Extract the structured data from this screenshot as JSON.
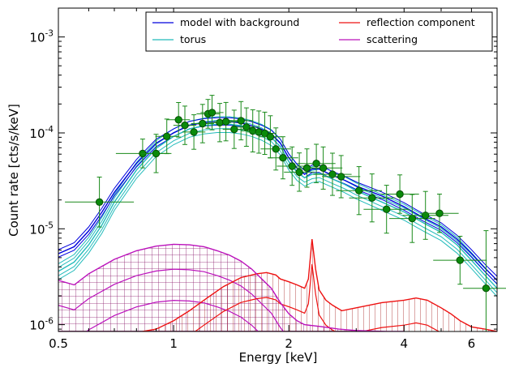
{
  "chart_data": {
    "type": "line",
    "title": "",
    "xlabel": "Energy [keV]",
    "ylabel": "Count rate [cts/s/keV]",
    "xscale": "log",
    "yscale": "log",
    "xlim": [
      0.5,
      7.0
    ],
    "ylim": [
      8.5e-07,
      0.002
    ],
    "grid": false,
    "legend_position": "top-right",
    "x_ticks": [
      {
        "value": 0.5,
        "label": "0.5"
      },
      {
        "value": 1,
        "label": "1"
      },
      {
        "value": 2,
        "label": "2"
      },
      {
        "value": 4,
        "label": "4"
      },
      {
        "value": 6,
        "label": "6"
      }
    ],
    "y_ticks": [
      {
        "value": 1e-06,
        "label": "10",
        "exp": "-6"
      },
      {
        "value": 1e-05,
        "label": "10",
        "exp": "-5"
      },
      {
        "value": 0.0001,
        "label": "10",
        "exp": "-4"
      },
      {
        "value": 0.001,
        "label": "10",
        "exp": "-3"
      }
    ],
    "series": [
      {
        "name": "model with background",
        "color": "#0000dd",
        "x": [
          0.5,
          0.55,
          0.6,
          0.65,
          0.7,
          0.8,
          0.9,
          1.0,
          1.1,
          1.2,
          1.3,
          1.4,
          1.5,
          1.6,
          1.7,
          1.8,
          1.9,
          2.0,
          2.1,
          2.2,
          2.3,
          2.4,
          2.6,
          2.8,
          3.0,
          3.5,
          4.0,
          4.5,
          5.0,
          5.5,
          6.0,
          6.5,
          7.0
        ],
        "values": [
          5.5e-06,
          6.5e-06,
          9.5e-06,
          1.5e-05,
          2.4e-05,
          4.8e-05,
          7.8e-05,
          0.0001,
          0.00012,
          0.000128,
          0.000131,
          0.000131,
          0.000127,
          0.000119,
          0.000109,
          9.7e-05,
          7.8e-05,
          5.5e-05,
          4.3e-05,
          3.7e-05,
          4.2e-05,
          4.2e-05,
          3.6e-05,
          3.2e-05,
          2.8e-05,
          2.2e-05,
          1.7e-05,
          1.3e-05,
          1.05e-05,
          7.8e-06,
          5.5e-06,
          3.9e-06,
          2.9e-06
        ]
      },
      {
        "name": "torus",
        "color": "#22bbbb",
        "x": [
          0.5,
          0.55,
          0.6,
          0.65,
          0.7,
          0.8,
          0.9,
          1.0,
          1.1,
          1.2,
          1.3,
          1.4,
          1.5,
          1.6,
          1.7,
          1.8,
          1.9,
          2.0,
          2.1,
          2.2,
          2.3,
          2.4,
          2.6,
          2.8,
          3.0,
          3.5,
          4.0,
          4.5,
          5.0,
          5.5,
          6.0,
          6.5,
          7.0
        ],
        "values": [
          3.6e-06,
          4.5e-06,
          6.8e-06,
          1.1e-05,
          1.9e-05,
          4.1e-05,
          6.9e-05,
          9.2e-05,
          0.00011,
          0.000119,
          0.000123,
          0.000123,
          0.000119,
          0.000112,
          0.000102,
          9e-05,
          7.2e-05,
          5e-05,
          3.9e-05,
          3.4e-05,
          3.7e-05,
          3.8e-05,
          3.3e-05,
          2.9e-05,
          2.5e-05,
          1.9e-05,
          1.5e-05,
          1.15e-05,
          9.2e-06,
          6.8e-06,
          4.7e-06,
          3.3e-06,
          2.4e-06
        ]
      },
      {
        "name": "reflection component",
        "color": "#ee1111",
        "x": [
          0.83,
          0.9,
          1.0,
          1.1,
          1.2,
          1.35,
          1.5,
          1.65,
          1.75,
          1.8,
          1.85,
          1.9,
          2.0,
          2.1,
          2.2,
          2.25,
          2.3,
          2.35,
          2.4,
          2.5,
          2.6,
          2.75,
          3.0,
          3.5,
          4.0,
          4.3,
          4.6,
          5.0,
          5.3,
          5.6,
          6.0,
          6.5,
          7.0
        ],
        "values": [
          8.5e-07,
          9e-07,
          1.1e-06,
          1.4e-06,
          1.8e-06,
          2.5e-06,
          3.1e-06,
          3.4e-06,
          3.5e-06,
          3.4e-06,
          3.3e-06,
          3e-06,
          2.8e-06,
          2.6e-06,
          2.4e-06,
          3e-06,
          7.8e-06,
          3.8e-06,
          2.3e-06,
          1.8e-06,
          1.6e-06,
          1.4e-06,
          1.5e-06,
          1.7e-06,
          1.8e-06,
          1.9e-06,
          1.8e-06,
          1.5e-06,
          1.3e-06,
          1.1e-06,
          9.5e-07,
          9e-07,
          8.5e-07
        ]
      },
      {
        "name": "scattering",
        "color": "#bb11bb",
        "x": [
          0.5,
          0.55,
          0.6,
          0.7,
          0.8,
          0.9,
          1.0,
          1.1,
          1.2,
          1.3,
          1.4,
          1.5,
          1.6,
          1.7,
          1.8,
          1.9,
          2.0,
          2.1,
          2.2,
          2.3,
          2.4,
          2.5,
          2.7,
          3.0,
          3.3,
          3.6,
          4.0
        ],
        "values": [
          2.9e-06,
          2.6e-06,
          3.4e-06,
          4.8e-06,
          5.9e-06,
          6.6e-06,
          6.9e-06,
          6.8e-06,
          6.5e-06,
          5.9e-06,
          5.3e-06,
          4.6e-06,
          3.8e-06,
          3e-06,
          2.4e-06,
          1.7e-06,
          1.3e-06,
          1.1e-06,
          1e-06,
          9.8e-07,
          9.6e-07,
          9.4e-07,
          9e-07,
          8.7e-07,
          8.6e-07,
          8.5e-07,
          8.5e-07
        ]
      }
    ]
  }
}
